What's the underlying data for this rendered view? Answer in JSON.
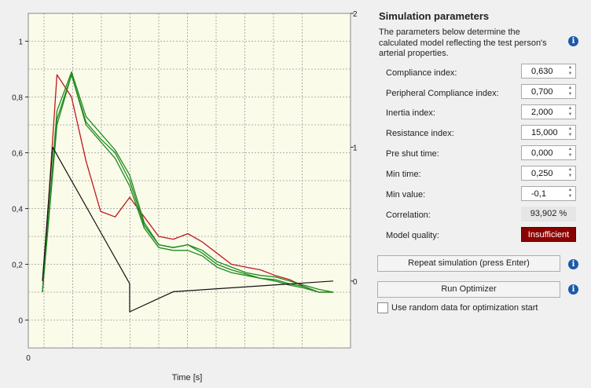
{
  "chart": {
    "xlabel": "Time [s]",
    "x_tick_label": "0",
    "left_ticks": [
      "1",
      "0,8",
      "0,6",
      "0,4",
      "0,2",
      "0"
    ],
    "right_ticks": [
      "2",
      "1",
      "0"
    ],
    "colors": {
      "bg": "#fbfbea",
      "grid": "#9a9a9a",
      "red": "#c0181e",
      "green": "#1e8a1e",
      "black": "#111111"
    }
  },
  "chart_data": {
    "type": "line",
    "xlabel": "Time [s]",
    "ylabel": "",
    "ylim": [
      -0.1,
      1.1
    ],
    "y2lim": [
      -0.5,
      2
    ],
    "x": [
      0,
      5,
      10,
      15,
      20,
      25,
      30,
      35,
      40,
      45,
      50,
      55,
      60,
      65,
      70,
      75,
      80,
      85,
      90,
      95,
      100
    ],
    "series": [
      {
        "axis": "left",
        "color": "#c0181e",
        "values": [
          0.1,
          0.88,
          0.8,
          0.57,
          0.39,
          0.37,
          0.44,
          0.37,
          0.3,
          0.29,
          0.31,
          0.28,
          0.24,
          0.2,
          0.19,
          0.18,
          0.16,
          0.145,
          0.12,
          0.1,
          0.1
        ]
      },
      {
        "axis": "left",
        "color": "#1e8a1e",
        "values": [
          0.1,
          0.72,
          0.88,
          0.71,
          0.65,
          0.6,
          0.5,
          0.34,
          0.27,
          0.26,
          0.27,
          0.24,
          0.2,
          0.18,
          0.165,
          0.15,
          0.145,
          0.13,
          0.12,
          0.1,
          0.1
        ]
      },
      {
        "axis": "left",
        "color": "#1e8a1e",
        "values": [
          0.1,
          0.75,
          0.89,
          0.73,
          0.67,
          0.61,
          0.52,
          0.35,
          0.27,
          0.26,
          0.27,
          0.25,
          0.21,
          0.19,
          0.17,
          0.16,
          0.155,
          0.14,
          0.125,
          0.11,
          0.1
        ]
      },
      {
        "axis": "left",
        "color": "#1e8a1e",
        "values": [
          0.1,
          0.7,
          0.88,
          0.7,
          0.64,
          0.58,
          0.48,
          0.33,
          0.26,
          0.25,
          0.25,
          0.23,
          0.19,
          0.17,
          0.16,
          0.15,
          0.14,
          0.125,
          0.115,
          0.1,
          0.1
        ]
      },
      {
        "axis": "right",
        "color": "#111111",
        "x": [
          0,
          3.5,
          30,
          30,
          45,
          100
        ],
        "values": [
          0,
          1,
          -0.02,
          -0.23,
          -0.08,
          0
        ]
      }
    ]
  },
  "panel": {
    "title": "Simulation parameters",
    "description": "The parameters below determine the calculated model reflecting the test person's arterial properties.",
    "params": [
      {
        "label": "Compliance index:",
        "value": "0,630"
      },
      {
        "label": "Peripheral Compliance index:",
        "value": "0,700"
      },
      {
        "label": "Inertia index:",
        "value": "2,000"
      },
      {
        "label": "Resistance index:",
        "value": "15,000"
      },
      {
        "label": "Pre shut time:",
        "value": "0,000"
      },
      {
        "label": "Min time:",
        "value": "0,250"
      },
      {
        "label": "Min value:",
        "value": "-0,1"
      }
    ],
    "correlation_label": "Correlation:",
    "correlation_value": "93,902 %",
    "quality_label": "Model quality:",
    "quality_value": "Insufficient",
    "quality_color": "#8b0000",
    "repeat_button": "Repeat simulation (press Enter)",
    "optimizer_button": "Run Optimizer",
    "random_checkbox_label": "Use random data for optimization start",
    "random_checkbox_checked": false,
    "info_glyph": "i",
    "spin_up": "▲",
    "spin_down": "▼"
  }
}
